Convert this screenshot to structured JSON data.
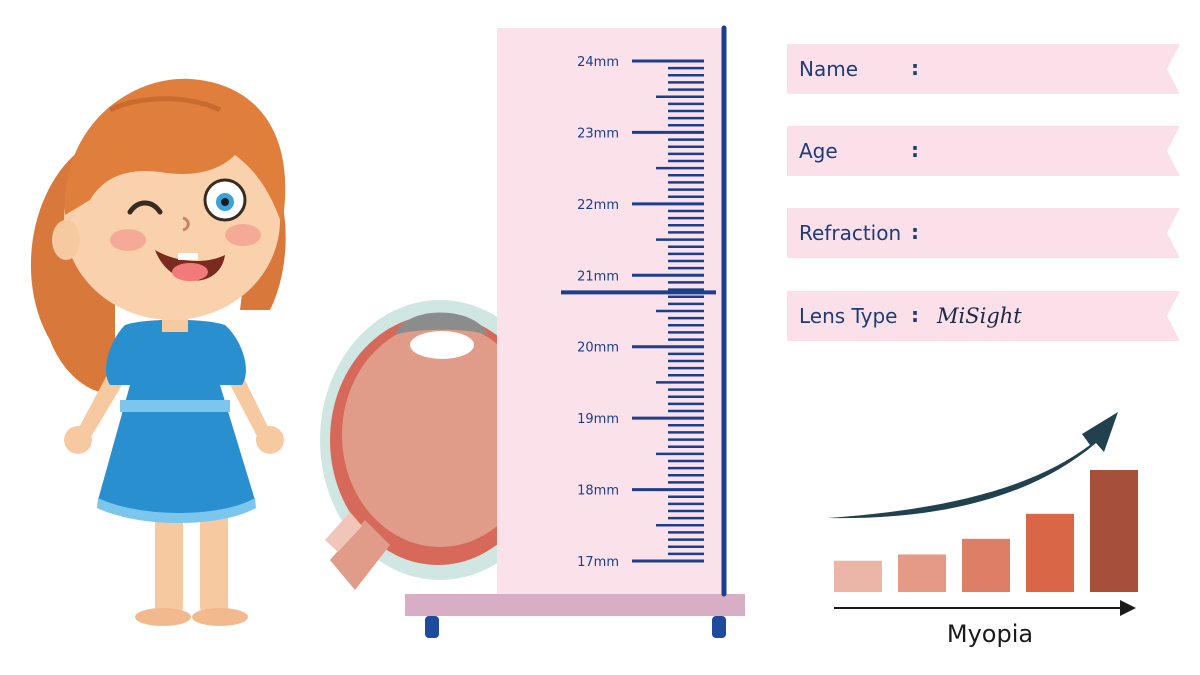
{
  "ruler": {
    "tick_labels": [
      "24mm",
      "23mm",
      "22mm",
      "21mm",
      "20mm",
      "19mm",
      "18mm",
      "17mm"
    ],
    "measured_value_mm": 20.76
  },
  "form": {
    "fields": [
      {
        "label": "Name",
        "value": ""
      },
      {
        "label": "Age",
        "value": ""
      },
      {
        "label": "Refraction",
        "value": ""
      },
      {
        "label": "Lens Type",
        "value": "MiSight"
      }
    ],
    "colon": ":"
  },
  "chart": {
    "label": "Myopia",
    "bar_values": [
      1,
      1.2,
      1.7,
      2.5,
      3.9
    ],
    "bar_colors": [
      "#ebb5a8",
      "#e59a87",
      "#dd7e67",
      "#d86647",
      "#a64f3a"
    ],
    "arrow_color": "#22414e"
  },
  "colors": {
    "ruler_bg": "#fae1ea",
    "ruler_ink": "#1b3f8c",
    "ribbon": "#fbe0ea"
  }
}
